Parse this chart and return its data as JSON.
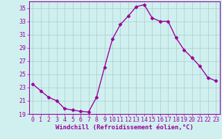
{
  "x": [
    0,
    1,
    2,
    3,
    4,
    5,
    6,
    7,
    8,
    9,
    10,
    11,
    12,
    13,
    14,
    15,
    16,
    17,
    18,
    19,
    20,
    21,
    22,
    23
  ],
  "y": [
    23.5,
    22.5,
    21.5,
    21.0,
    19.8,
    19.6,
    19.4,
    19.3,
    21.5,
    26.0,
    30.3,
    32.5,
    33.8,
    35.2,
    35.5,
    33.5,
    33.0,
    33.0,
    30.5,
    28.7,
    27.5,
    26.2,
    24.5,
    24.0
  ],
  "line_color": "#990099",
  "marker": "D",
  "marker_size": 2.5,
  "bg_color": "#d0f0f0",
  "grid_color": "#aacccc",
  "xlabel": "Windchill (Refroidissement éolien,°C)",
  "ylim": [
    19,
    36
  ],
  "yticks": [
    19,
    21,
    23,
    25,
    27,
    29,
    31,
    33,
    35
  ],
  "xlim": [
    -0.5,
    23.5
  ],
  "xticks": [
    0,
    1,
    2,
    3,
    4,
    5,
    6,
    7,
    8,
    9,
    10,
    11,
    12,
    13,
    14,
    15,
    16,
    17,
    18,
    19,
    20,
    21,
    22,
    23
  ],
  "font_size_ticks": 6,
  "font_size_xlabel": 6.5,
  "linewidth": 1.0
}
